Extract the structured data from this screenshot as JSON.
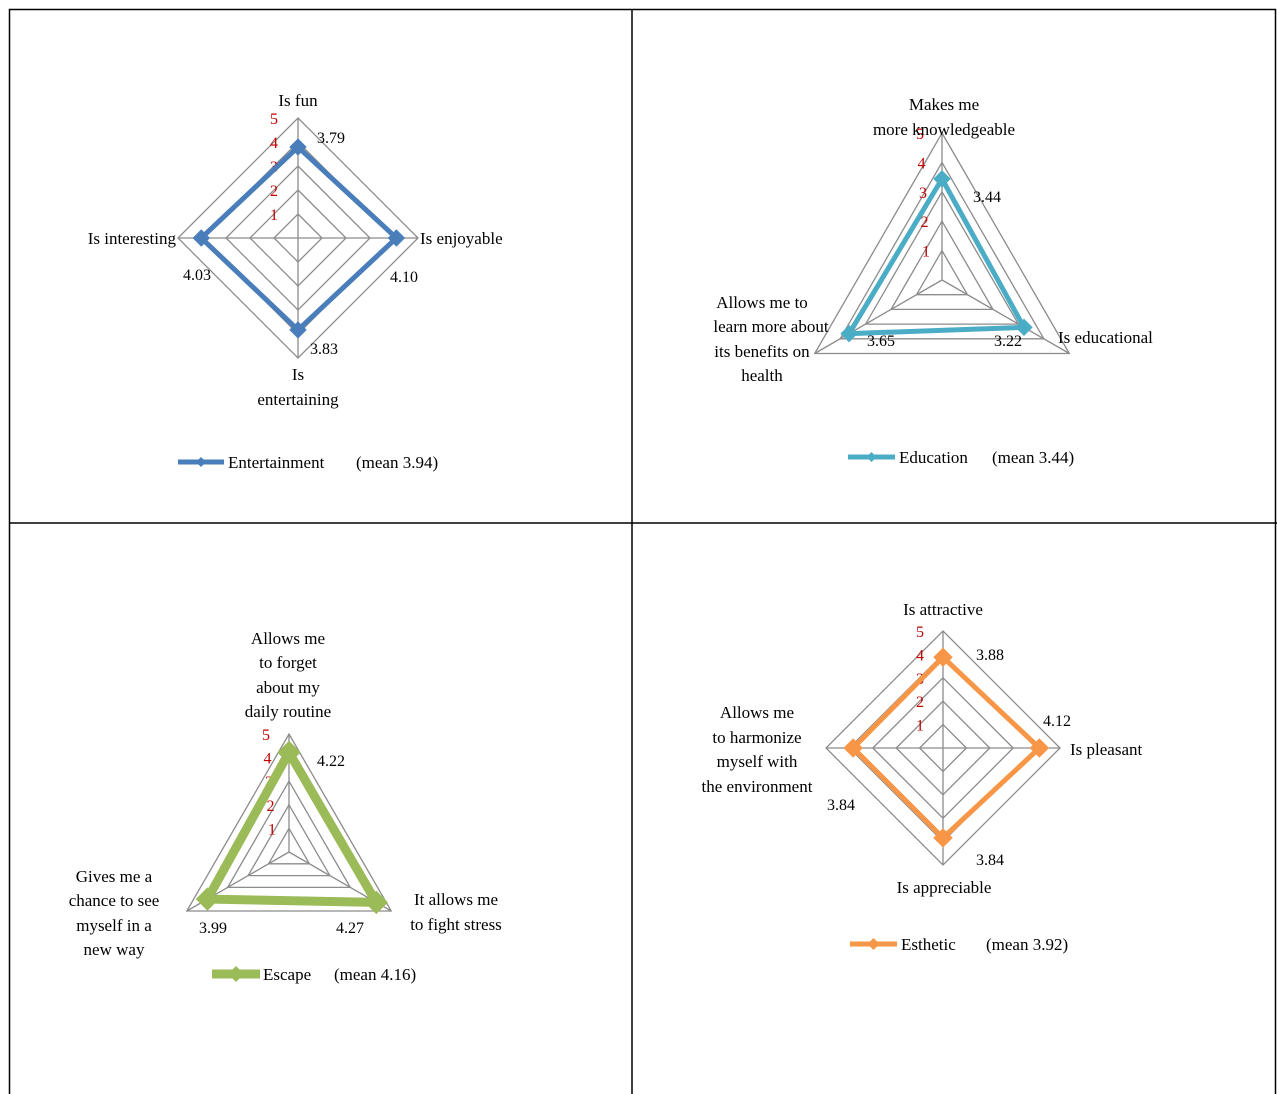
{
  "chart_data": [
    {
      "type": "radar",
      "series": [
        {
          "name": "Entertainment",
          "values": [
            3.79,
            4.1,
            3.83,
            4.03
          ]
        }
      ],
      "categories": [
        "Is fun",
        "Is enjoyable",
        "Is entertaining",
        "Is interesting"
      ],
      "value_labels": [
        "3.79",
        "4.10",
        "3.83",
        "4.03"
      ],
      "ticks": [
        "1",
        "2",
        "3",
        "4",
        "5"
      ],
      "rlim": [
        0,
        5
      ],
      "color": "#4a7ebb",
      "legend_note": "(mean 3.94)",
      "legend": "bottom"
    },
    {
      "type": "radar",
      "series": [
        {
          "name": "Education",
          "values": [
            3.44,
            3.22,
            3.65
          ]
        }
      ],
      "categories": [
        "Makes me more knowledgeable",
        "Is educational",
        "Allows me to learn more about its benefits on health"
      ],
      "value_labels": [
        "3.44",
        "3.22",
        "3.65"
      ],
      "ticks": [
        "1",
        "2",
        "3",
        "4",
        "5"
      ],
      "rlim": [
        0,
        5
      ],
      "color": "#4bacc6",
      "legend_note": "(mean  3.44)",
      "legend": "bottom"
    },
    {
      "type": "radar",
      "series": [
        {
          "name": "Escape",
          "values": [
            4.22,
            4.27,
            3.99
          ]
        }
      ],
      "categories": [
        "Allows me to forget about my daily routine",
        "It allows me to fight stress",
        "Gives me a chance to see myself in a new way"
      ],
      "value_labels": [
        "4.22",
        "4.27",
        "3.99"
      ],
      "ticks": [
        "1",
        "2",
        "3",
        "4",
        "5"
      ],
      "rlim": [
        0,
        5
      ],
      "color": "#9bbb59",
      "legend_note": "(mean  4.16)",
      "legend": "bottom"
    },
    {
      "type": "radar",
      "series": [
        {
          "name": "Esthetic",
          "values": [
            3.88,
            4.12,
            3.84,
            3.84
          ]
        }
      ],
      "categories": [
        "Is attractive",
        "Is pleasant",
        "Is appreciable",
        "Allows me to harmonize myself with the environment"
      ],
      "value_labels": [
        "3.88",
        "4.12",
        "3.84",
        "3.84"
      ],
      "ticks": [
        "1",
        "2",
        "3",
        "4",
        "5"
      ],
      "rlim": [
        0,
        5
      ],
      "color": "#f79646",
      "legend_note": "(mean  3.92)",
      "legend": "bottom"
    }
  ]
}
